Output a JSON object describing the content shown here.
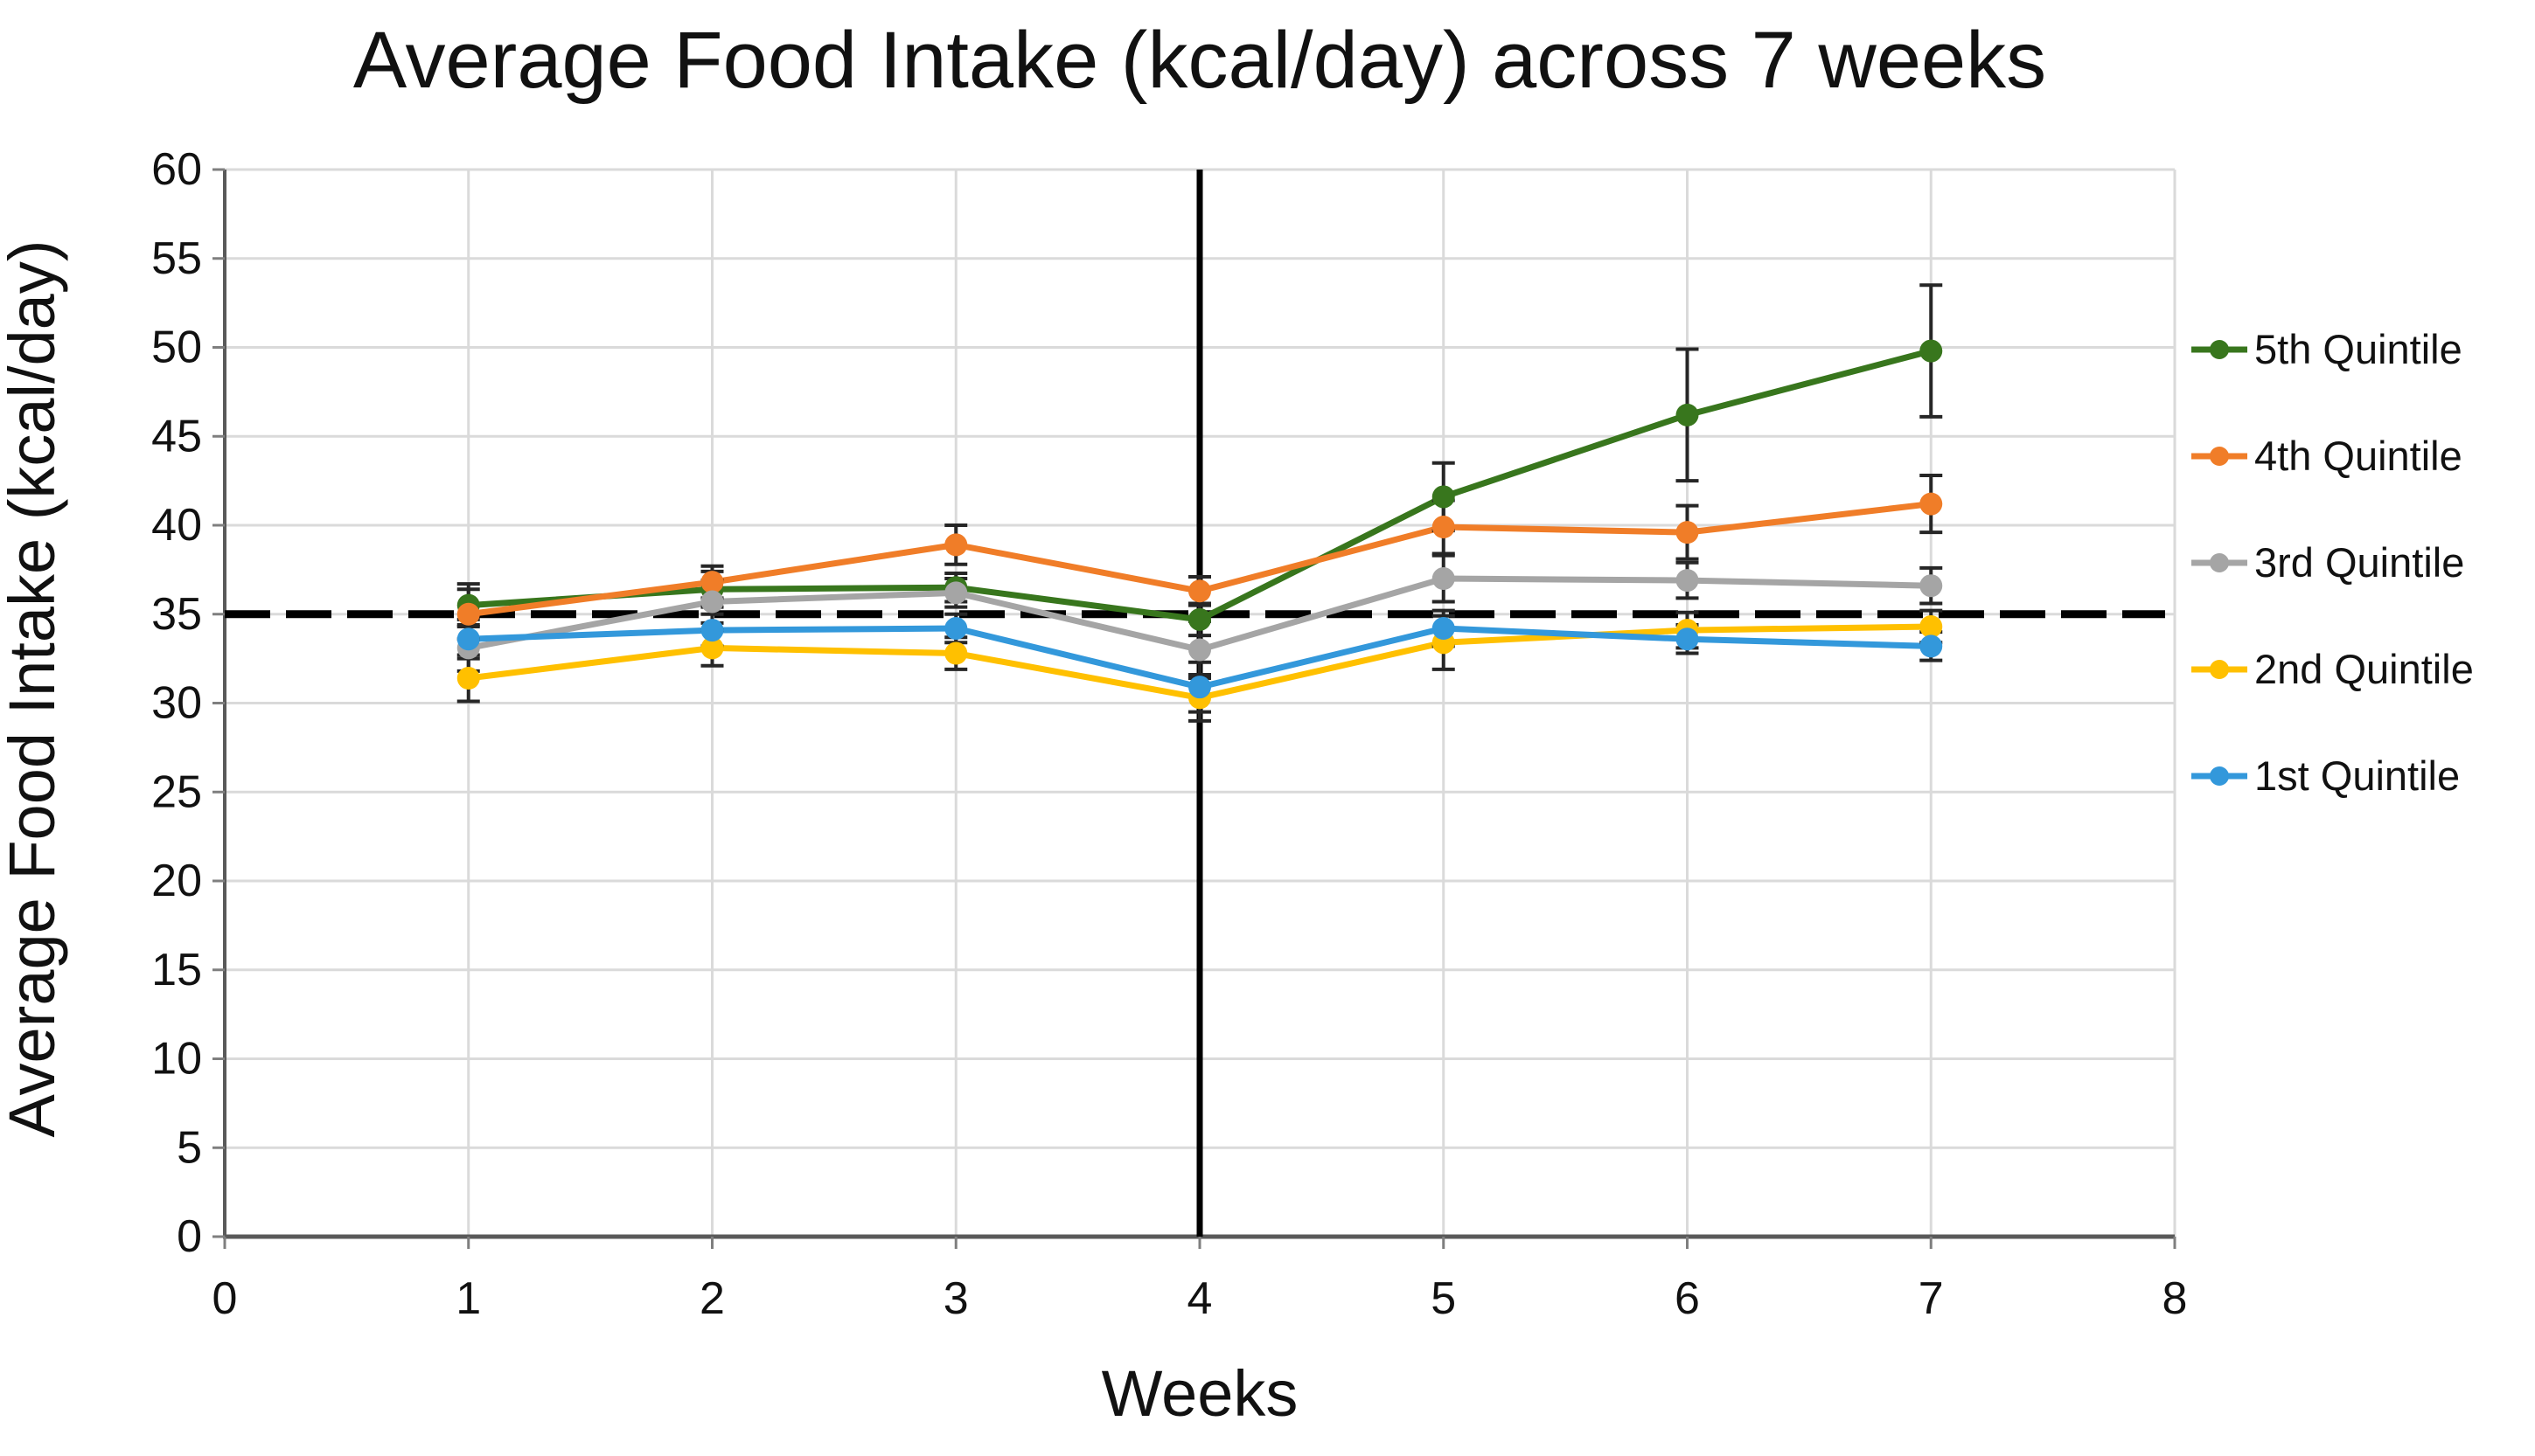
{
  "chart_data": {
    "type": "line",
    "title": "Average Food Intake (kcal/day) across 7 weeks",
    "xlabel": "Weeks",
    "ylabel": "Average Food Intake (kcal/day)",
    "xlim": [
      0,
      8
    ],
    "ylim": [
      0,
      60
    ],
    "xticks": [
      0,
      1,
      2,
      3,
      4,
      5,
      6,
      7,
      8
    ],
    "yticks": [
      0,
      5,
      10,
      15,
      20,
      25,
      30,
      35,
      40,
      45,
      50,
      55,
      60
    ],
    "grid": true,
    "legend_position": "right",
    "x": [
      1,
      2,
      3,
      4,
      5,
      6,
      7
    ],
    "series": [
      {
        "name": "5th Quintile",
        "color": "#38761D",
        "values": [
          35.5,
          36.4,
          36.5,
          34.7,
          41.6,
          46.2,
          49.8
        ],
        "errors": [
          1.2,
          1.0,
          0.8,
          0.9,
          1.9,
          3.7,
          3.7
        ]
      },
      {
        "name": "4th Quintile",
        "color": "#F07D28",
        "values": [
          35.0,
          36.8,
          38.9,
          36.3,
          39.9,
          39.6,
          41.2
        ],
        "errors": [
          1.4,
          0.9,
          1.1,
          0.8,
          1.5,
          1.5,
          1.6
        ]
      },
      {
        "name": "3rd Quintile",
        "color": "#A5A5A5",
        "values": [
          33.1,
          35.7,
          36.2,
          33.0,
          37.0,
          36.9,
          36.6
        ],
        "errors": [
          1.3,
          1.2,
          0.8,
          1.6,
          1.3,
          1.0,
          1.0
        ]
      },
      {
        "name": "2nd Quintile",
        "color": "#FFC000",
        "values": [
          31.4,
          33.1,
          32.8,
          30.3,
          33.4,
          34.1,
          34.3
        ],
        "errors": [
          1.3,
          1.0,
          0.9,
          1.3,
          1.5,
          1.0,
          0.9
        ]
      },
      {
        "name": "1st Quintile",
        "color": "#3398DB",
        "values": [
          33.6,
          34.1,
          34.2,
          30.9,
          34.2,
          33.6,
          33.2
        ],
        "errors": [
          1.1,
          0.9,
          0.8,
          1.4,
          1.0,
          0.8,
          0.8
        ]
      }
    ],
    "annotations": {
      "dashed_hline_y": 35,
      "solid_vline_x": 4
    },
    "colors": {
      "gridline": "#DADADA",
      "axis": "#595959",
      "tick": "#7F7F7F",
      "reference_line": "#000000",
      "error_bar": "#262626",
      "text": "#111111"
    }
  }
}
